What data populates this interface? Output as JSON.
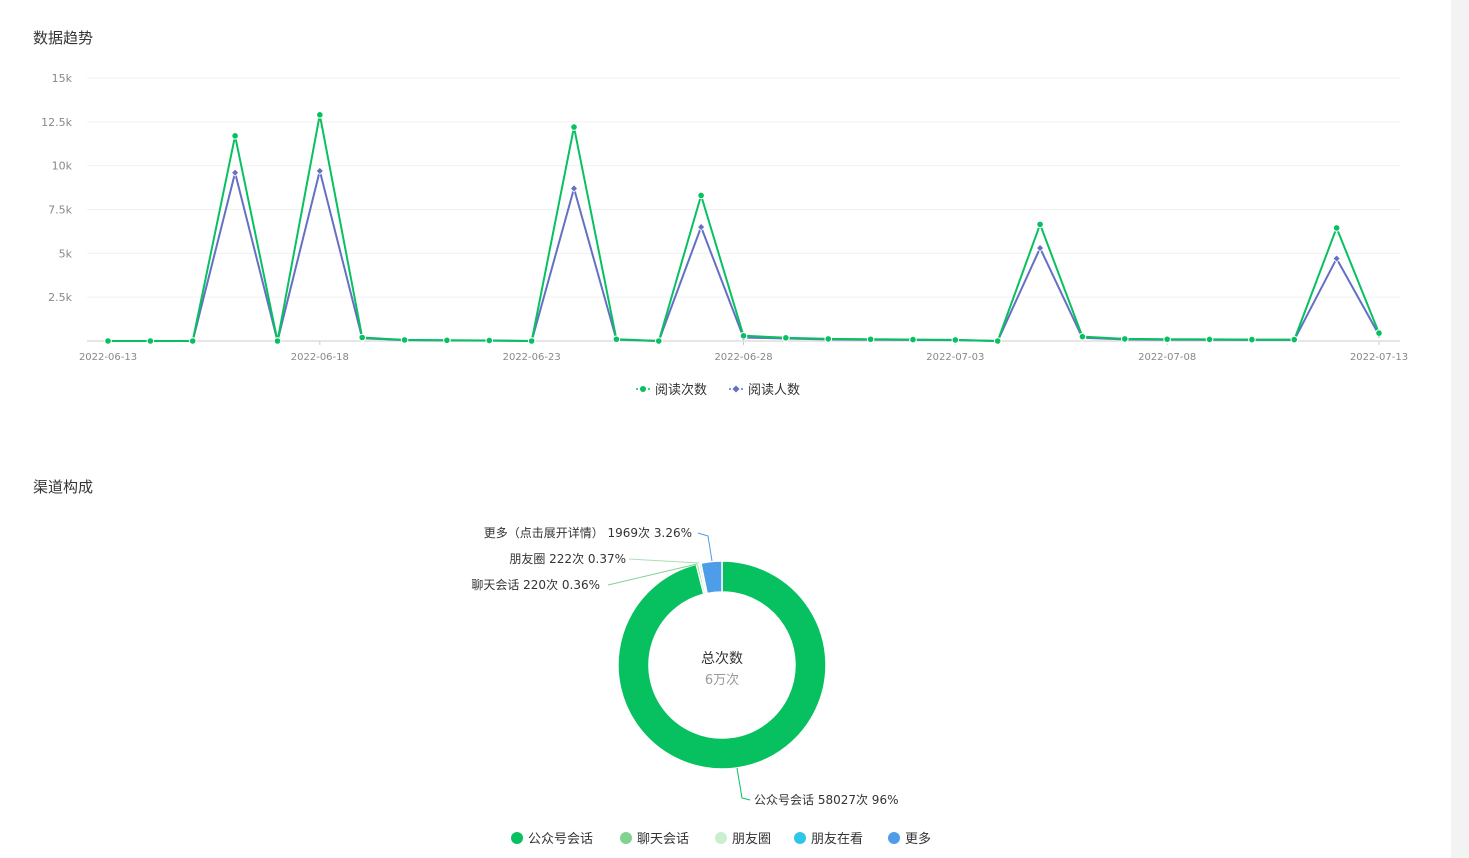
{
  "sections": {
    "trend_title": "数据趋势",
    "channel_title": "渠道构成"
  },
  "colors": {
    "reads": "#07c160",
    "readers": "#6470c4",
    "grid": "#f0f0f0",
    "axis": "#cccccc"
  },
  "chart_data": [
    {
      "type": "line",
      "title": "数据趋势",
      "xlabel": "",
      "ylabel": "",
      "ylim": [
        0,
        15000
      ],
      "y_ticks": [
        "2.5k",
        "5k",
        "7.5k",
        "10k",
        "12.5k",
        "15k"
      ],
      "x_tick_labels": [
        "2022-06-13",
        "2022-06-18",
        "2022-06-23",
        "2022-06-28",
        "2022-07-03",
        "2022-07-08",
        "2022-07-13"
      ],
      "x": [
        "2022-06-13",
        "2022-06-14",
        "2022-06-15",
        "2022-06-16",
        "2022-06-17",
        "2022-06-18",
        "2022-06-19",
        "2022-06-20",
        "2022-06-21",
        "2022-06-22",
        "2022-06-23",
        "2022-06-24",
        "2022-06-25",
        "2022-06-26",
        "2022-06-27",
        "2022-06-28",
        "2022-06-29",
        "2022-06-30",
        "2022-07-01",
        "2022-07-02",
        "2022-07-03",
        "2022-07-04",
        "2022-07-05",
        "2022-07-06",
        "2022-07-07",
        "2022-07-08",
        "2022-07-09",
        "2022-07-10",
        "2022-07-11",
        "2022-07-12",
        "2022-07-13"
      ],
      "series": [
        {
          "name": "阅读次数",
          "color": "#07c160",
          "marker": "circle",
          "values": [
            0,
            0,
            0,
            11700,
            0,
            12900,
            200,
            60,
            40,
            30,
            0,
            12200,
            100,
            0,
            8300,
            300,
            180,
            120,
            100,
            80,
            60,
            0,
            6650,
            250,
            120,
            100,
            90,
            80,
            80,
            6450,
            450
          ]
        },
        {
          "name": "阅读人数",
          "color": "#6470c4",
          "marker": "diamond",
          "values": [
            0,
            0,
            0,
            9600,
            0,
            9700,
            160,
            50,
            30,
            20,
            0,
            8700,
            80,
            0,
            6500,
            200,
            140,
            90,
            80,
            60,
            50,
            0,
            5300,
            180,
            90,
            80,
            70,
            60,
            60,
            4700,
            350
          ]
        }
      ],
      "grid": true,
      "legend_position": "bottom-center"
    },
    {
      "type": "pie",
      "title": "渠道构成",
      "center_label": "总次数",
      "center_value": "6万次",
      "slices": [
        {
          "name": "公众号会话",
          "value": 58027,
          "label": "公众号会话 58027次 96%",
          "color": "#07c160"
        },
        {
          "name": "聊天会话",
          "value": 220,
          "label": "聊天会话 220次 0.36%",
          "color": "#7fd38f"
        },
        {
          "name": "朋友圈",
          "value": 222,
          "label": "朋友圈 222次 0.37%",
          "color": "#c9eed0"
        },
        {
          "name": "朋友在看",
          "value": 0,
          "label": "",
          "color": "#2fc6e8"
        },
        {
          "name": "更多",
          "value": 1969,
          "label": "更多（点击展开详情） 1969次 3.26%",
          "color": "#4d9de8"
        }
      ],
      "legend": [
        "公众号会话",
        "聊天会话",
        "朋友圈",
        "朋友在看",
        "更多"
      ],
      "legend_position": "bottom-center"
    }
  ]
}
